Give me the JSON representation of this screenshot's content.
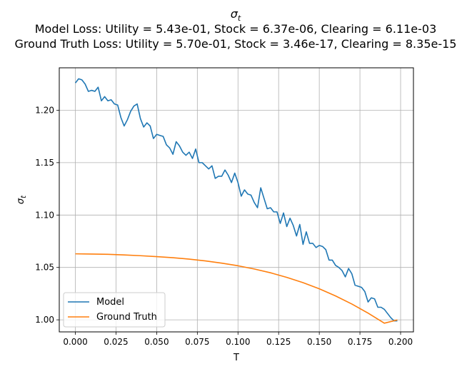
{
  "chart_data": {
    "type": "line",
    "title_symbol": "σ",
    "title_subscript": "t",
    "title_line2": "Model Loss: Utility = 5.43e-01, Stock = 6.37e-06, Clearing = 6.11e-03",
    "title_line3": "Ground Truth Loss: Utility = 5.70e-01, Stock = 3.46e-17, Clearing = 8.35e-15",
    "xlabel": "T",
    "ylabel_symbol": "σ",
    "ylabel_subscript": "t",
    "xlim": [
      -0.0099,
      0.2079
    ],
    "ylim": [
      0.9885,
      1.2405
    ],
    "xticks": [
      0.0,
      0.025,
      0.05,
      0.075,
      0.1,
      0.125,
      0.15,
      0.175,
      0.2
    ],
    "xtick_labels": [
      "0.000",
      "0.025",
      "0.050",
      "0.075",
      "0.100",
      "0.125",
      "0.150",
      "0.175",
      "0.200"
    ],
    "yticks": [
      1.0,
      1.05,
      1.1,
      1.15,
      1.2
    ],
    "ytick_labels": [
      "1.00",
      "1.05",
      "1.10",
      "1.15",
      "1.20"
    ],
    "grid": true,
    "legend_position": "lower-left",
    "colors": {
      "model": "#1f77b4",
      "ground_truth": "#ff7f0e"
    },
    "series": [
      {
        "name": "Model",
        "x": [
          0.0,
          0.002,
          0.004,
          0.006,
          0.008,
          0.01,
          0.012,
          0.014,
          0.016,
          0.018,
          0.02,
          0.022,
          0.024,
          0.026,
          0.028,
          0.03,
          0.032,
          0.034,
          0.036,
          0.038,
          0.04,
          0.042,
          0.044,
          0.046,
          0.048,
          0.05,
          0.052,
          0.054,
          0.056,
          0.058,
          0.06,
          0.062,
          0.064,
          0.066,
          0.068,
          0.07,
          0.072,
          0.074,
          0.076,
          0.078,
          0.08,
          0.082,
          0.084,
          0.086,
          0.088,
          0.09,
          0.092,
          0.094,
          0.096,
          0.098,
          0.1,
          0.102,
          0.104,
          0.106,
          0.108,
          0.11,
          0.112,
          0.114,
          0.116,
          0.118,
          0.12,
          0.122,
          0.124,
          0.126,
          0.128,
          0.13,
          0.132,
          0.134,
          0.136,
          0.138,
          0.14,
          0.142,
          0.144,
          0.146,
          0.148,
          0.15,
          0.152,
          0.154,
          0.156,
          0.158,
          0.16,
          0.162,
          0.164,
          0.166,
          0.168,
          0.17,
          0.172,
          0.174,
          0.176,
          0.178,
          0.18,
          0.182,
          0.184,
          0.186,
          0.188,
          0.19,
          0.192,
          0.194,
          0.196,
          0.198
        ],
        "values": [
          1.226,
          1.23,
          1.229,
          1.225,
          1.218,
          1.219,
          1.218,
          1.222,
          1.209,
          1.213,
          1.209,
          1.21,
          1.206,
          1.205,
          1.193,
          1.185,
          1.191,
          1.199,
          1.204,
          1.206,
          1.192,
          1.184,
          1.188,
          1.185,
          1.173,
          1.177,
          1.176,
          1.175,
          1.167,
          1.164,
          1.158,
          1.17,
          1.166,
          1.16,
          1.157,
          1.16,
          1.154,
          1.163,
          1.15,
          1.15,
          1.147,
          1.144,
          1.147,
          1.135,
          1.137,
          1.137,
          1.143,
          1.138,
          1.131,
          1.14,
          1.131,
          1.118,
          1.124,
          1.12,
          1.119,
          1.112,
          1.107,
          1.126,
          1.116,
          1.106,
          1.107,
          1.103,
          1.103,
          1.092,
          1.102,
          1.089,
          1.097,
          1.09,
          1.08,
          1.091,
          1.072,
          1.084,
          1.073,
          1.073,
          1.069,
          1.071,
          1.07,
          1.067,
          1.057,
          1.057,
          1.052,
          1.05,
          1.047,
          1.041,
          1.049,
          1.044,
          1.033,
          1.032,
          1.031,
          1.027,
          1.017,
          1.021,
          1.02,
          1.012,
          1.012,
          1.01,
          1.006,
          1.002,
          0.999,
          0.999
        ]
      },
      {
        "name": "Ground Truth",
        "x": [
          0.0,
          0.01,
          0.02,
          0.03,
          0.04,
          0.05,
          0.06,
          0.07,
          0.08,
          0.09,
          0.1,
          0.11,
          0.12,
          0.13,
          0.14,
          0.15,
          0.16,
          0.17,
          0.18,
          0.19,
          0.198
        ],
        "values": [
          1.063,
          1.0628,
          1.0625,
          1.0619,
          1.0612,
          1.0603,
          1.0593,
          1.0579,
          1.0562,
          1.0541,
          1.0516,
          1.0485,
          1.0449,
          1.0405,
          1.0355,
          1.0296,
          1.0228,
          1.0151,
          1.0064,
          0.9968,
          0.9999
        ]
      }
    ]
  }
}
